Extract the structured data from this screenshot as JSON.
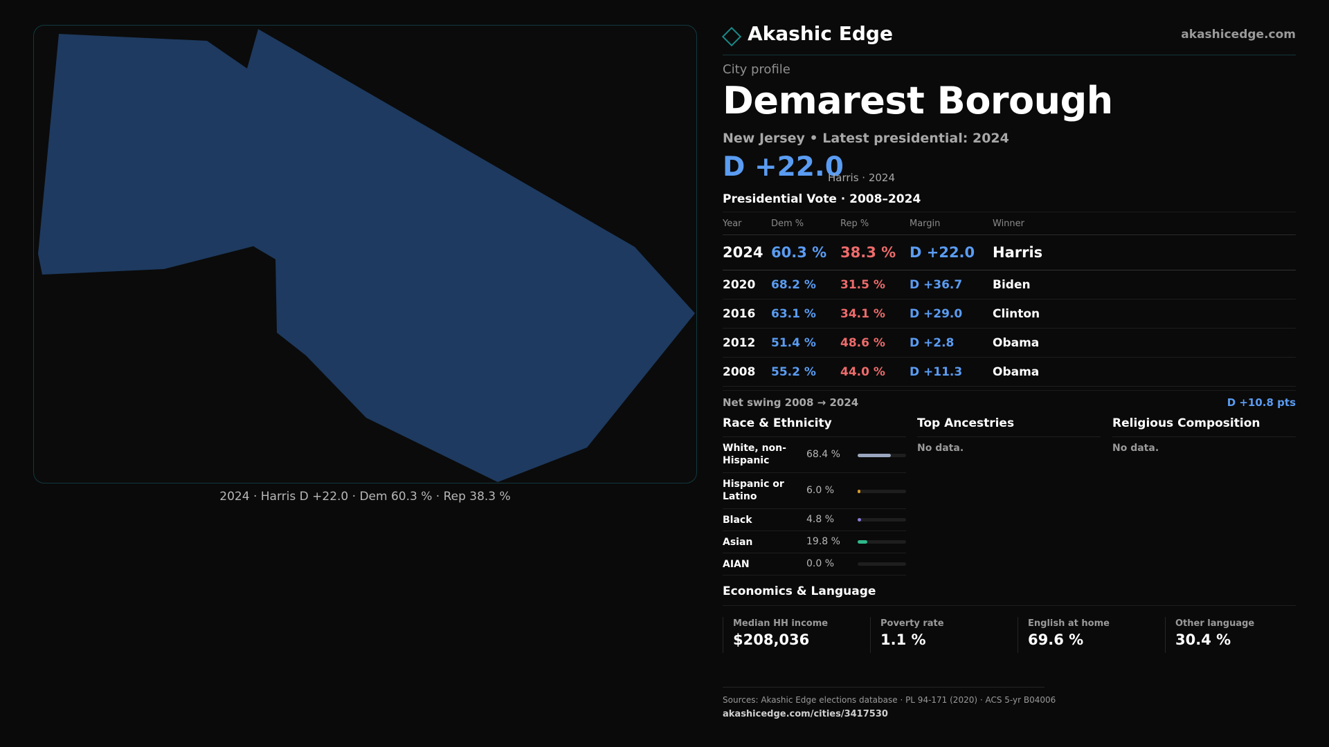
{
  "map": {
    "caption": "2024 · Harris D +22.0 · Dem 60.3 % · Rep 38.3 %",
    "fill_color": "#1e3a60"
  },
  "header": {
    "brand": "Akashic Edge",
    "url": "akashicedge.com",
    "logo_icon": "diamond-icon"
  },
  "profile": {
    "eyebrow": "City profile",
    "title": "Demarest Borough",
    "subtitle": "New Jersey • Latest presidential: 2024",
    "margin": "D +22.0",
    "margin_note": "Harris · 2024"
  },
  "vote": {
    "title": "Presidential Vote · 2008–2024",
    "headers": [
      "Year",
      "Dem %",
      "Rep %",
      "Margin",
      "Winner"
    ],
    "rows": [
      {
        "year": "2024",
        "dem": "60.3 %",
        "rep": "38.3 %",
        "margin": "D +22.0",
        "winner": "Harris"
      },
      {
        "year": "2020",
        "dem": "68.2 %",
        "rep": "31.5 %",
        "margin": "D +36.7",
        "winner": "Biden"
      },
      {
        "year": "2016",
        "dem": "63.1 %",
        "rep": "34.1 %",
        "margin": "D +29.0",
        "winner": "Clinton"
      },
      {
        "year": "2012",
        "dem": "51.4 %",
        "rep": "48.6 %",
        "margin": "D +2.8",
        "winner": "Obama"
      },
      {
        "year": "2008",
        "dem": "55.2 %",
        "rep": "44.0 %",
        "margin": "D +11.3",
        "winner": "Obama"
      }
    ],
    "swing_label": "Net swing 2008 → 2024",
    "swing_value": "D +10.8 pts"
  },
  "race": {
    "title": "Race & Ethnicity",
    "rows": [
      {
        "label": "White, non-Hispanic",
        "value": "68.4 %",
        "pct": 68.4,
        "color": "#9aa6bd"
      },
      {
        "label": "Hispanic or Latino",
        "value": "6.0 %",
        "pct": 6.0,
        "color": "#d49a2a"
      },
      {
        "label": "Black",
        "value": "4.8 %",
        "pct": 4.8,
        "color": "#8a7ad8"
      },
      {
        "label": "Asian",
        "value": "19.8 %",
        "pct": 19.8,
        "color": "#2fb88a"
      },
      {
        "label": "AIAN",
        "value": "0.0 %",
        "pct": 0.0,
        "color": "#cc6688"
      }
    ]
  },
  "ancestries": {
    "title": "Top Ancestries",
    "empty": "No data."
  },
  "religion": {
    "title": "Religious Composition",
    "empty": "No data."
  },
  "economics": {
    "title": "Economics & Language",
    "items": [
      {
        "label": "Median HH income",
        "value": "$208,036"
      },
      {
        "label": "Poverty rate",
        "value": "1.1 %"
      },
      {
        "label": "English at home",
        "value": "69.6 %"
      },
      {
        "label": "Other language",
        "value": "30.4 %"
      }
    ]
  },
  "footer": {
    "sources": "Sources: Akashic Edge elections database · PL 94-171 (2020) · ACS 5-yr B04006",
    "url": "akashicedge.com/cities/3417530"
  }
}
